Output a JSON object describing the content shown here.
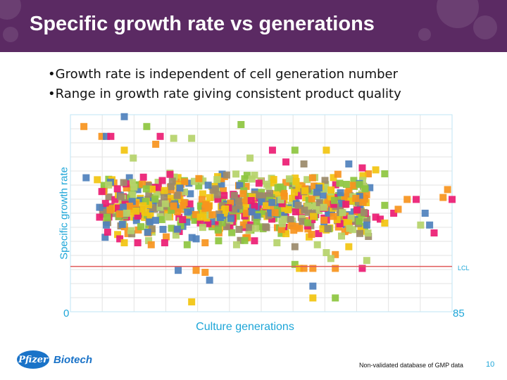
{
  "slide": {
    "title": "Specific growth rate vs generations",
    "bullets": [
      "•Growth rate is independent of cell generation number",
      "•Range in growth rate giving consistent product quality"
    ],
    "footnote": "Non-validated database of GMP data",
    "page_number": "10",
    "logo_text": "Biotech",
    "logo_mark": "Pfizer"
  },
  "chart_data": {
    "type": "scatter",
    "title": "",
    "xlabel": "Culture generations",
    "ylabel": "Specific growth rate",
    "xlim": [
      0,
      85
    ],
    "x_tick_labels": [
      "0",
      "85"
    ],
    "reference_line": {
      "label": "LCL",
      "value": 0.23,
      "color": "#e05a5a"
    },
    "grid": true,
    "legend": "none",
    "colors": [
      "#f7941d",
      "#ec1c73",
      "#8dc63f",
      "#f2c40f",
      "#4f81bd",
      "#b5d36a",
      "#9b8a6a"
    ],
    "points": [
      [
        3.5,
        0.68,
        4
      ],
      [
        7,
        0.89,
        0
      ],
      [
        8,
        0.89,
        4
      ],
      [
        9,
        0.89,
        1
      ],
      [
        12,
        0.99,
        4
      ],
      [
        17,
        0.94,
        2
      ],
      [
        20,
        0.89,
        1
      ],
      [
        23,
        0.88,
        5
      ],
      [
        27,
        0.88,
        5
      ],
      [
        38,
        0.95,
        2
      ],
      [
        45,
        0.82,
        1
      ],
      [
        50,
        0.82,
        2
      ],
      [
        57,
        0.82,
        3
      ],
      [
        40,
        0.78,
        5
      ],
      [
        48,
        0.76,
        1
      ],
      [
        52,
        0.75,
        6
      ],
      [
        62,
        0.75,
        4
      ],
      [
        65,
        0.73,
        1
      ],
      [
        68,
        0.72,
        3
      ],
      [
        70,
        0.7,
        2
      ],
      [
        6,
        0.67,
        3
      ],
      [
        7,
        0.61,
        1
      ],
      [
        6.5,
        0.53,
        4
      ],
      [
        6.5,
        0.48,
        1
      ],
      [
        8,
        0.44,
        4
      ],
      [
        11,
        0.37,
        1
      ],
      [
        12,
        0.35,
        3
      ],
      [
        15,
        0.35,
        1
      ],
      [
        18,
        0.34,
        0
      ],
      [
        21,
        0.35,
        1
      ],
      [
        26,
        0.34,
        2
      ],
      [
        28,
        0.37,
        4
      ],
      [
        30,
        0.35,
        0
      ],
      [
        33,
        0.36,
        2
      ],
      [
        37,
        0.34,
        5
      ],
      [
        41,
        0.36,
        1
      ],
      [
        46,
        0.35,
        5
      ],
      [
        50,
        0.33,
        6
      ],
      [
        55,
        0.34,
        5
      ],
      [
        57,
        0.3,
        5
      ],
      [
        59,
        0.29,
        0
      ],
      [
        24,
        0.21,
        4
      ],
      [
        28,
        0.21,
        0
      ],
      [
        30,
        0.2,
        0
      ],
      [
        31,
        0.16,
        4
      ],
      [
        50,
        0.24,
        2
      ],
      [
        51,
        0.22,
        3
      ],
      [
        52,
        0.22,
        0
      ],
      [
        54,
        0.22,
        0
      ],
      [
        58,
        0.27,
        5
      ],
      [
        59,
        0.22,
        0
      ],
      [
        65,
        0.22,
        1
      ],
      [
        66,
        0.26,
        5
      ],
      [
        62,
        0.33,
        3
      ],
      [
        54,
        0.13,
        4
      ],
      [
        54,
        0.07,
        3
      ],
      [
        59,
        0.07,
        2
      ],
      [
        27,
        0.05,
        3
      ],
      [
        3,
        0.94,
        0
      ],
      [
        66,
        0.44,
        4
      ],
      [
        69,
        0.47,
        1
      ],
      [
        70,
        0.54,
        2
      ],
      [
        72,
        0.5,
        1
      ],
      [
        75,
        0.57,
        0
      ],
      [
        77,
        0.57,
        1
      ],
      [
        78,
        0.44,
        5
      ],
      [
        80,
        0.44,
        4
      ],
      [
        81,
        0.4,
        1
      ],
      [
        83,
        0.58,
        0
      ],
      [
        85,
        0.57,
        1
      ],
      [
        84,
        0.62,
        0
      ],
      [
        68,
        0.48,
        1
      ],
      [
        70,
        0.45,
        3
      ],
      [
        73,
        0.52,
        0
      ],
      [
        79,
        0.5,
        4
      ],
      [
        12,
        0.82,
        3
      ],
      [
        14,
        0.78,
        5
      ],
      [
        19,
        0.85,
        0
      ]
    ],
    "point_cloud": {
      "x_range": [
        7,
        67
      ],
      "y_range": [
        0.35,
        0.72
      ],
      "count": 720,
      "note_hidden": true
    }
  }
}
